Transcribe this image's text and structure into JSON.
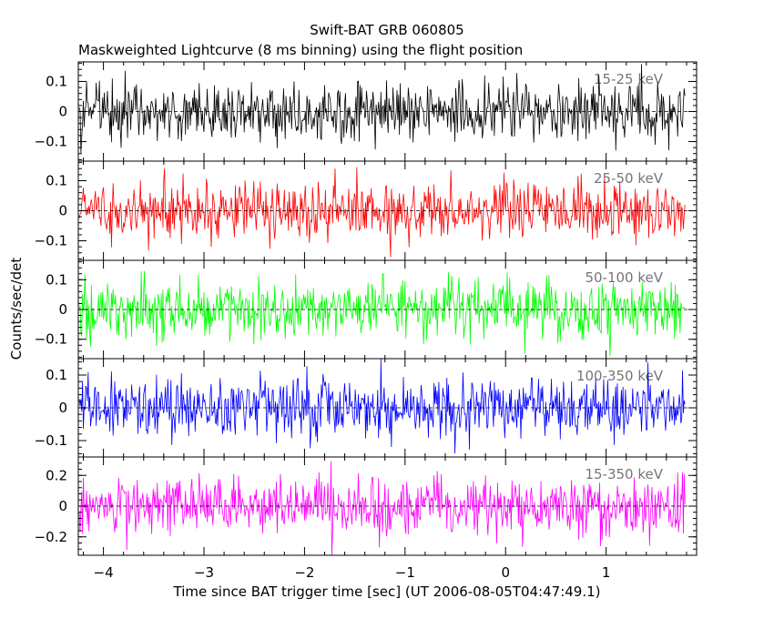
{
  "chart_data": {
    "type": "line",
    "title": "Swift-BAT GRB 060805",
    "subtitle": "Maskweighted Lightcurve (8 ms binning) using the flight position",
    "xlabel": "Time since BAT trigger time [sec] (UT 2006-08-05T04:47:49.1)",
    "ylabel": "Counts/sec/det",
    "xlim": [
      -4.25,
      1.9
    ],
    "x_range_data": [
      -4.24,
      1.78
    ],
    "bin_width_sec": 0.008,
    "x_ticks": [
      -4,
      -3,
      -2,
      -1,
      0,
      1
    ],
    "x_tick_labels": [
      "−4",
      "−3",
      "−2",
      "−1",
      "0",
      "1"
    ],
    "grid": false,
    "panels": [
      {
        "name": "15-25 keV",
        "color": "#000000",
        "ylim": [
          -0.165,
          0.165
        ],
        "y_ticks": [
          -0.1,
          0,
          0.1
        ],
        "y_tick_labels": [
          "−0.1",
          "0",
          "0.1"
        ],
        "noise_sigma": 0.05
      },
      {
        "name": "25-50 keV",
        "color": "#ff0000",
        "ylim": [
          -0.165,
          0.165
        ],
        "y_ticks": [
          -0.1,
          0,
          0.1
        ],
        "y_tick_labels": [
          "−0.1",
          "0",
          "0.1"
        ],
        "noise_sigma": 0.05
      },
      {
        "name": "50-100 keV",
        "color": "#00ff00",
        "ylim": [
          -0.165,
          0.165
        ],
        "y_ticks": [
          -0.1,
          0,
          0.1
        ],
        "y_tick_labels": [
          "−0.1",
          "0",
          "0.1"
        ],
        "noise_sigma": 0.05
      },
      {
        "name": "100-350 keV",
        "color": "#0000ff",
        "ylim": [
          -0.15,
          0.15
        ],
        "y_ticks": [
          -0.1,
          0,
          0.1
        ],
        "y_tick_labels": [
          "−0.1",
          "0",
          "0.1"
        ],
        "noise_sigma": 0.045
      },
      {
        "name": "15-350 keV",
        "color": "#ff00ff",
        "ylim": [
          -0.32,
          0.32
        ],
        "y_ticks": [
          -0.2,
          0,
          0.2
        ],
        "y_tick_labels": [
          "−0.2",
          "0",
          "0.2"
        ],
        "noise_sigma": 0.095
      }
    ]
  }
}
